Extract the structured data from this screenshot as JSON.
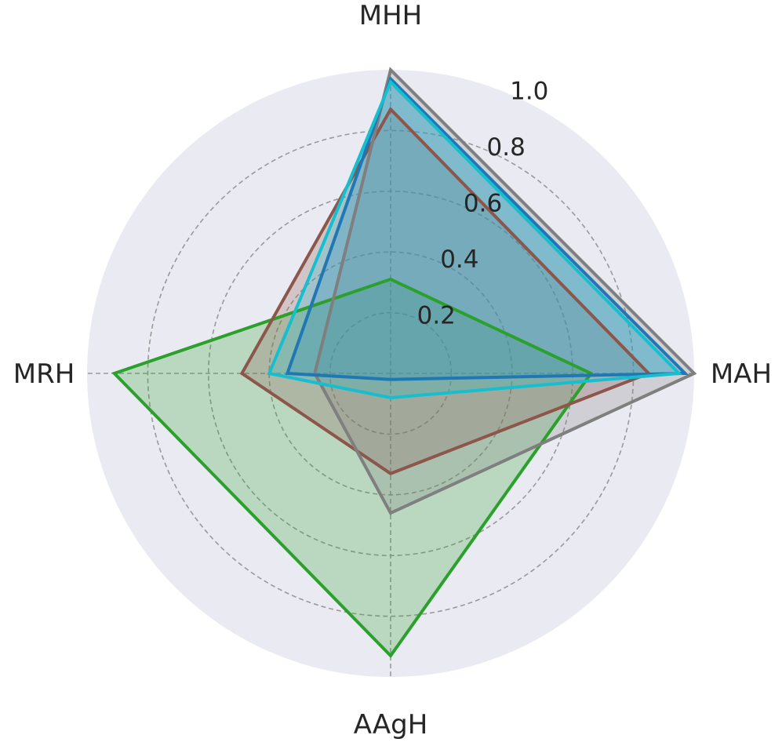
{
  "chart_data": {
    "type": "radar",
    "axes": [
      "MHH",
      "MAH",
      "AAgH",
      "MRH"
    ],
    "rlim": [
      0,
      1.0
    ],
    "rticks": [
      0.2,
      0.4,
      0.6,
      0.8,
      1.0
    ],
    "rtick_labels": [
      "0.2",
      "0.4",
      "0.6",
      "0.8",
      "1.0"
    ],
    "grid": true,
    "background_color": "#EAEAF2",
    "series": [
      {
        "values": [
          0.31,
          0.66,
          0.93,
          0.91
        ],
        "color": "#2CA02C"
      },
      {
        "values": [
          0.87,
          0.85,
          0.33,
          0.49
        ],
        "color": "#8C564B"
      },
      {
        "values": [
          1.0,
          1.0,
          0.46,
          0.25
        ],
        "color": "#7F7F7F"
      },
      {
        "values": [
          0.97,
          0.97,
          0.02,
          0.34
        ],
        "color": "#1F77B4"
      },
      {
        "values": [
          0.96,
          0.95,
          0.08,
          0.4
        ],
        "color": "#17BECF"
      }
    ]
  }
}
